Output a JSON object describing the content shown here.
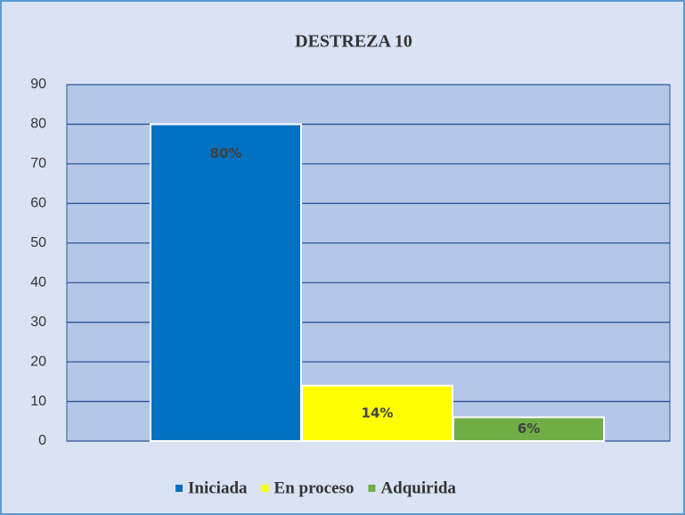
{
  "chart_data": {
    "type": "bar",
    "title": "DESTREZA 10",
    "categories": [
      null
    ],
    "series": [
      {
        "name": "Iniciada",
        "color": "#0070c0",
        "values": [
          80
        ],
        "value_labels": [
          "80%"
        ]
      },
      {
        "name": "En proceso",
        "color": "#ffff00",
        "values": [
          14
        ],
        "value_labels": [
          "14%"
        ]
      },
      {
        "name": "Adquirida",
        "color": "#70ad47",
        "values": [
          6
        ],
        "value_labels": [
          "6%"
        ]
      }
    ],
    "ylim": [
      0,
      90
    ],
    "yticks": [
      0,
      10,
      20,
      30,
      40,
      50,
      60,
      70,
      80,
      90
    ],
    "grid": true,
    "legend": "bottom"
  }
}
